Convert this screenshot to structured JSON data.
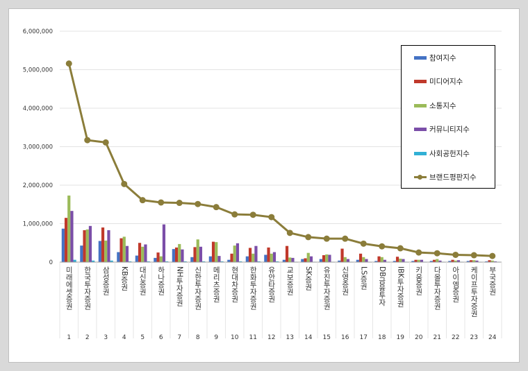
{
  "chart_data": {
    "type": "bar",
    "title": "",
    "xlabel": "",
    "ylabel": "",
    "ylim": [
      0,
      6000000
    ],
    "yticks": [
      "0",
      "1,000,000",
      "2,000,000",
      "3,000,000",
      "4,000,000",
      "5,000,000",
      "6,000,000"
    ],
    "grid": true,
    "legend_position": "top-right",
    "categories": [
      "미래에셋증권",
      "한국투자증권",
      "삼성증권",
      "KB증권",
      "대신증권",
      "하나증권",
      "NH투자증권",
      "신한투자증권",
      "메리츠증권",
      "현대차증권",
      "한화투자증권",
      "유안타증권",
      "교보증권",
      "SK증권",
      "유진투자증권",
      "신영증권",
      "LS증권",
      "DB금융투자",
      "IBK투자증권",
      "키움증권",
      "다올투자증권",
      "아이엠증권",
      "케이프투자증권",
      "부국증권"
    ],
    "ranks": [
      "1",
      "2",
      "3",
      "4",
      "5",
      "6",
      "7",
      "8",
      "9",
      "10",
      "11",
      "12",
      "13",
      "14",
      "15",
      "16",
      "17",
      "18",
      "19",
      "20",
      "21",
      "22",
      "23",
      "24"
    ],
    "series": [
      {
        "name": "참여지수",
        "color": "#4472c4",
        "type": "bar",
        "values": [
          870000,
          430000,
          550000,
          260000,
          170000,
          110000,
          340000,
          130000,
          150000,
          60000,
          150000,
          190000,
          60000,
          80000,
          80000,
          40000,
          60000,
          30000,
          30000,
          30000,
          30000,
          30000,
          30000,
          20000
        ]
      },
      {
        "name": "미디어지수",
        "color": "#c0392b",
        "type": "bar",
        "values": [
          1150000,
          830000,
          900000,
          620000,
          500000,
          250000,
          380000,
          390000,
          530000,
          220000,
          370000,
          380000,
          420000,
          100000,
          180000,
          350000,
          220000,
          150000,
          140000,
          60000,
          60000,
          60000,
          50000,
          50000
        ]
      },
      {
        "name": "소통지수",
        "color": "#9bbb59",
        "type": "bar",
        "values": [
          1730000,
          850000,
          560000,
          660000,
          400000,
          150000,
          470000,
          590000,
          520000,
          430000,
          220000,
          220000,
          120000,
          240000,
          200000,
          130000,
          130000,
          130000,
          90000,
          60000,
          80000,
          40000,
          50000,
          40000
        ]
      },
      {
        "name": "커뮤니티지수",
        "color": "#7b4ea8",
        "type": "bar",
        "values": [
          1330000,
          940000,
          830000,
          420000,
          460000,
          980000,
          330000,
          400000,
          160000,
          490000,
          420000,
          260000,
          110000,
          150000,
          190000,
          80000,
          80000,
          60000,
          80000,
          60000,
          40000,
          50000,
          40000,
          20000
        ]
      },
      {
        "name": "사회공헌지수",
        "color": "#31b0d5",
        "type": "bar",
        "values": [
          60000,
          40000,
          40000,
          20000,
          20000,
          20000,
          20000,
          20000,
          20000,
          20000,
          20000,
          20000,
          10000,
          10000,
          10000,
          10000,
          10000,
          10000,
          10000,
          10000,
          10000,
          10000,
          10000,
          10000
        ]
      },
      {
        "name": "브랜드평판지수",
        "color": "#8b7d3a",
        "type": "line",
        "values": [
          5160000,
          3170000,
          3110000,
          2030000,
          1610000,
          1550000,
          1540000,
          1510000,
          1430000,
          1240000,
          1230000,
          1170000,
          760000,
          650000,
          610000,
          610000,
          480000,
          410000,
          360000,
          250000,
          230000,
          190000,
          180000,
          160000
        ]
      }
    ]
  }
}
